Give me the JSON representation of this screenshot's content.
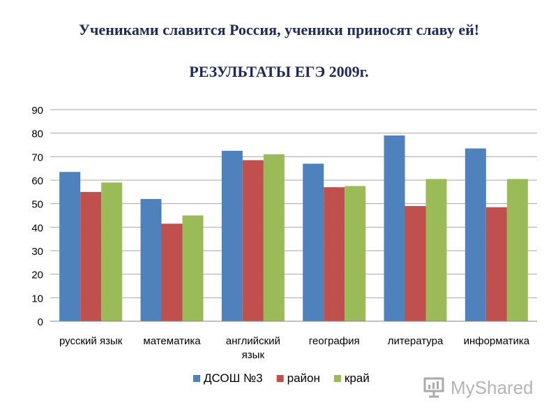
{
  "header": {
    "title": "Учениками славится Россия, ученики приносят славу ей!",
    "subtitle": "РЕЗУЛЬТАТЫ ЕГЭ 2009г."
  },
  "chart_data": {
    "type": "bar",
    "categories": [
      "русский язык",
      "математика",
      "английский язык",
      "география",
      "литература",
      "информатика"
    ],
    "series": [
      {
        "name": "ДСОШ №3",
        "color": "#4f81bd",
        "values": [
          63.5,
          52,
          72.5,
          67,
          79,
          73.5
        ]
      },
      {
        "name": "район",
        "color": "#c0504d",
        "values": [
          55,
          41.5,
          68.5,
          57,
          49,
          48.5
        ]
      },
      {
        "name": "край",
        "color": "#9bbb59",
        "values": [
          59,
          45,
          71,
          57.5,
          60.5,
          60.5
        ]
      }
    ],
    "ylim": [
      0,
      90
    ],
    "yticks": [
      0,
      10,
      20,
      30,
      40,
      50,
      60,
      70,
      80,
      90
    ],
    "grid": true,
    "legend": "bottom"
  },
  "watermark": {
    "text": "MyShared",
    "icon": "presentation-board-icon"
  }
}
